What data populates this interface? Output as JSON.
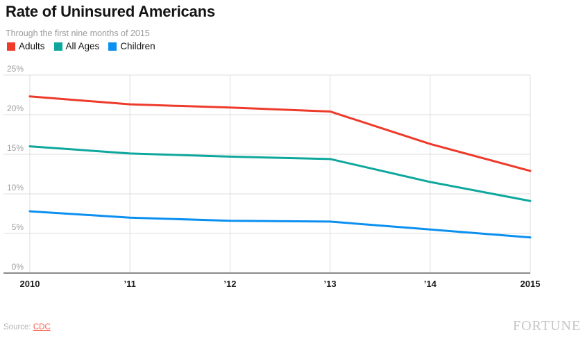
{
  "header": {
    "title": "Rate of Uninsured Americans",
    "subtitle": "Through the first nine months of 2015"
  },
  "chart_data": {
    "type": "line",
    "categories": [
      "2010",
      "’11",
      "’12",
      "’13",
      "’14",
      "2015"
    ],
    "series": [
      {
        "name": "Adults",
        "color": "#ee3a2b",
        "values": [
          22.3,
          21.3,
          20.9,
          20.4,
          16.3,
          12.9
        ]
      },
      {
        "name": "All Ages",
        "color": "#0ea79d",
        "values": [
          16.0,
          15.1,
          14.7,
          14.4,
          11.5,
          9.1
        ]
      },
      {
        "name": "Children",
        "color": "#0b90f0",
        "values": [
          7.8,
          7.0,
          6.6,
          6.5,
          5.5,
          4.5
        ]
      }
    ],
    "ylim": [
      0,
      25
    ],
    "yticks": [
      {
        "value": 0,
        "label": "0%"
      },
      {
        "value": 5,
        "label": "5%"
      },
      {
        "value": 10,
        "label": "10%"
      },
      {
        "value": 15,
        "label": "15%"
      },
      {
        "value": 20,
        "label": "20%"
      },
      {
        "value": 25,
        "label": "25%"
      }
    ],
    "grid": true,
    "legend_position": "top-left"
  },
  "footer": {
    "source_label": "Source:",
    "source_link": "CDC",
    "brand": "FORTUNE"
  }
}
